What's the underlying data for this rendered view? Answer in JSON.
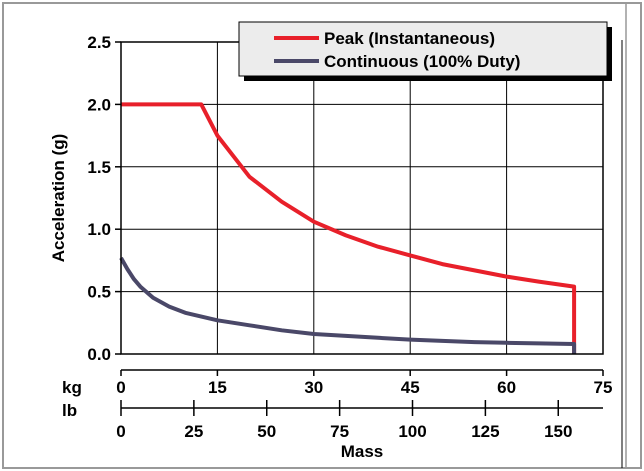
{
  "chart_data": {
    "type": "line",
    "title": "",
    "xlabel": "Mass",
    "ylabel": "Acceleration (g)",
    "x_primary_unit": "kg",
    "x_secondary_unit": "lb",
    "ylim": [
      0,
      2.5
    ],
    "xlim": [
      0,
      75
    ],
    "y_ticks": [
      {
        "value": 0,
        "label": "0.0"
      },
      {
        "value": 0.5,
        "label": "0.5"
      },
      {
        "value": 1.0,
        "label": "1.0"
      },
      {
        "value": 1.5,
        "label": "1.5"
      },
      {
        "value": 2.0,
        "label": "2.0"
      },
      {
        "value": 2.5,
        "label": "2.5"
      }
    ],
    "x_ticks_kg": [
      {
        "value": 0,
        "label": "0"
      },
      {
        "value": 15,
        "label": "15"
      },
      {
        "value": 30,
        "label": "30"
      },
      {
        "value": 45,
        "label": "45"
      },
      {
        "value": 60,
        "label": "60"
      },
      {
        "value": 75,
        "label": "75"
      }
    ],
    "x_ticks_lb": [
      {
        "value": 0,
        "label": "0"
      },
      {
        "value": 25,
        "label": "25"
      },
      {
        "value": 50,
        "label": "50"
      },
      {
        "value": 75,
        "label": "75"
      },
      {
        "value": 100,
        "label": "100"
      },
      {
        "value": 125,
        "label": "125"
      },
      {
        "value": 150,
        "label": "150"
      }
    ],
    "grid": true,
    "legend_position": "top-right",
    "series": [
      {
        "name": "Peak (Instantaneous)",
        "color": "#e8202a",
        "x": [
          0,
          6,
          12.5,
          15,
          20,
          25,
          30,
          35,
          40,
          45,
          50,
          55,
          60,
          65,
          70.5,
          70.5
        ],
        "y": [
          2.0,
          2.0,
          2.0,
          1.75,
          1.42,
          1.22,
          1.06,
          0.95,
          0.86,
          0.79,
          0.72,
          0.67,
          0.62,
          0.58,
          0.54,
          0
        ]
      },
      {
        "name": "Continuous (100% Duty)",
        "color": "#4a4868",
        "x": [
          0,
          1,
          2,
          3,
          5,
          7.5,
          10,
          15,
          20,
          25,
          30,
          35,
          40,
          45,
          50,
          55,
          60,
          65,
          70.5,
          70.5
        ],
        "y": [
          0.77,
          0.68,
          0.6,
          0.54,
          0.45,
          0.38,
          0.33,
          0.27,
          0.23,
          0.19,
          0.16,
          0.145,
          0.13,
          0.115,
          0.105,
          0.095,
          0.09,
          0.085,
          0.08,
          0
        ]
      }
    ]
  }
}
